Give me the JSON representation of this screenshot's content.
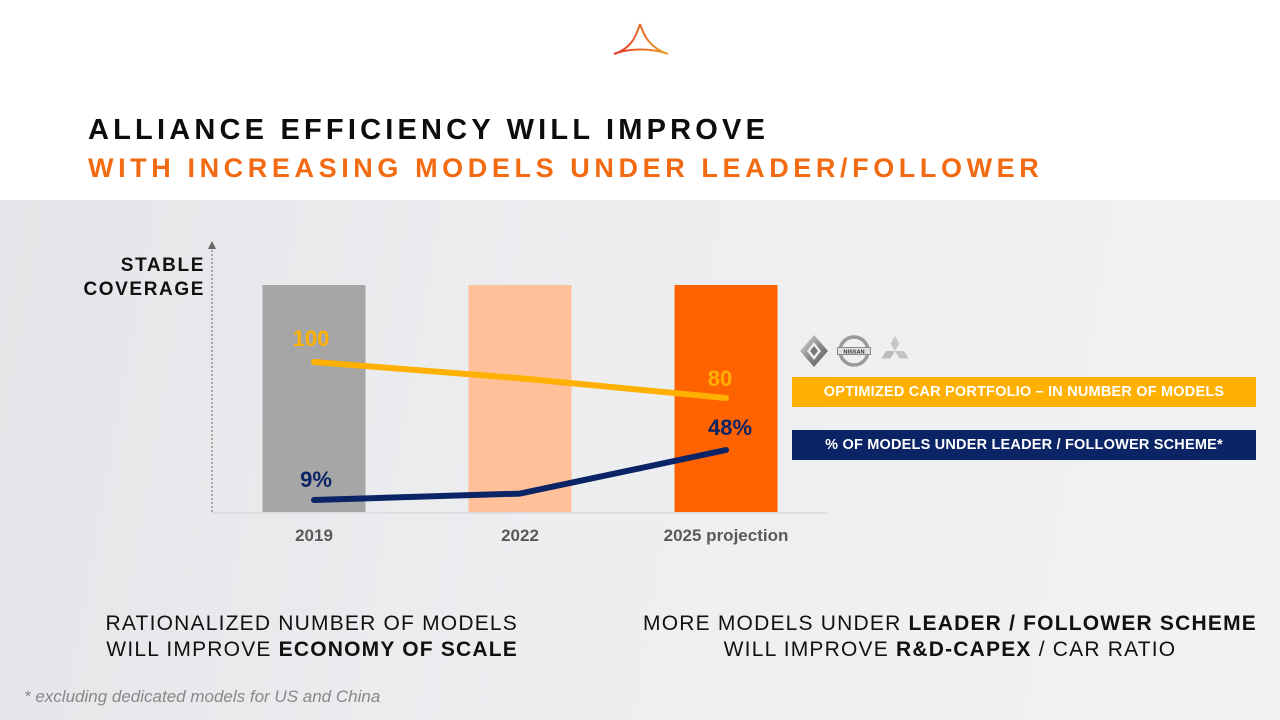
{
  "header": {
    "logo_icon": "alliance-logo-icon",
    "title_line1": "ALLIANCE EFFICIENCY WILL IMPROVE",
    "title_line2": "WITH INCREASING MODELS UNDER LEADER/FOLLOWER"
  },
  "colors": {
    "title_accent": "#f26b12",
    "bar_2019": "#a6a6a6",
    "bar_2022": "#ffc09a",
    "bar_2025": "#ff6200",
    "portfolio_line": "#ffb000",
    "leader_follower_line": "#0b2466"
  },
  "chart_data": {
    "type": "bar",
    "title": "",
    "ylabel": "STABLE COVERAGE",
    "ylabel_lines": [
      "STABLE",
      "COVERAGE"
    ],
    "xlabel": "",
    "categories": [
      "2019",
      "2022",
      "2025 projection"
    ],
    "bars": {
      "name": "Stable coverage",
      "values": [
        1,
        1,
        1
      ],
      "colors": [
        "#a6a6a6",
        "#ffc09a",
        "#ff6200"
      ]
    },
    "series": [
      {
        "name": "OPTIMIZED CAR PORTFOLIO – IN NUMBER OF MODELS",
        "type": "line",
        "values": [
          100,
          91,
          80
        ],
        "labels": [
          "100",
          "",
          "80"
        ],
        "color": "#ffb000"
      },
      {
        "name": "% OF MODELS UNDER LEADER / FOLLOWER SCHEME*",
        "type": "line",
        "values": [
          9,
          14,
          48
        ],
        "labels": [
          "9%",
          "",
          "48%"
        ],
        "color": "#0b2466"
      }
    ],
    "grid": false,
    "legend_position": "right",
    "y_axis_ticks": false
  },
  "legend": {
    "brand_icons": [
      "renault-logo-icon",
      "nissan-logo-icon",
      "mitsubishi-logo-icon"
    ],
    "nissan_text": "NISSAN",
    "items": [
      "OPTIMIZED CAR PORTFOLIO – IN NUMBER OF MODELS",
      "% OF MODELS UNDER LEADER / FOLLOWER SCHEME*"
    ]
  },
  "bottom": {
    "left": {
      "line1": "RATIONALIZED NUMBER OF MODELS",
      "line2_normal": "WILL IMPROVE ",
      "line2_bold": "ECONOMY OF SCALE"
    },
    "right": {
      "line1_normal": "MORE MODELS UNDER ",
      "line1_bold": "LEADER / FOLLOWER SCHEME",
      "line2_normal_a": "WILL IMPROVE ",
      "line2_bold": "R&D-CAPEX",
      "line2_normal_b": " / CAR RATIO"
    }
  },
  "footnote": "* excluding dedicated models for US and China"
}
